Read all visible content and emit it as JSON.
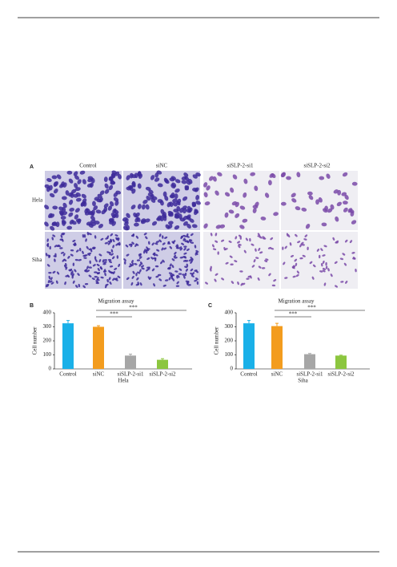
{
  "figure": {
    "panel_a": "A",
    "columns": [
      "Control",
      "siNC",
      "siSLP-2-si1",
      "siSLP-2-si2"
    ],
    "rows": [
      "Hela",
      "Siha"
    ]
  },
  "chart_data": [
    {
      "type": "bar",
      "panel": "B",
      "title": "Migration assay",
      "ylabel": "Cell number",
      "xlabel": "Hela",
      "categories": [
        "Control",
        "siNC",
        "siSLP-2-si1",
        "siSLP-2-si2"
      ],
      "values": [
        325,
        300,
        95,
        65
      ],
      "errors": [
        20,
        8,
        10,
        8
      ],
      "colors": [
        "#1ab0e8",
        "#f39c1e",
        "#a6a6a6",
        "#8cc63f"
      ],
      "ylim": [
        0,
        400
      ],
      "yticks": [
        0,
        100,
        200,
        300,
        400
      ],
      "annotations": [
        "***",
        "***"
      ]
    },
    {
      "type": "bar",
      "panel": "C",
      "title": "Migration assay",
      "ylabel": "Cell number",
      "xlabel": "Siha",
      "categories": [
        "Control",
        "siNC",
        "siSLP-2-si1",
        "siSLP-2-si2"
      ],
      "values": [
        325,
        305,
        105,
        95
      ],
      "errors": [
        20,
        20,
        5,
        3
      ],
      "colors": [
        "#1ab0e8",
        "#f39c1e",
        "#a6a6a6",
        "#8cc63f"
      ],
      "ylim": [
        0,
        400
      ],
      "yticks": [
        0,
        100,
        200,
        300,
        400
      ],
      "annotations": [
        "***",
        "***"
      ]
    }
  ]
}
